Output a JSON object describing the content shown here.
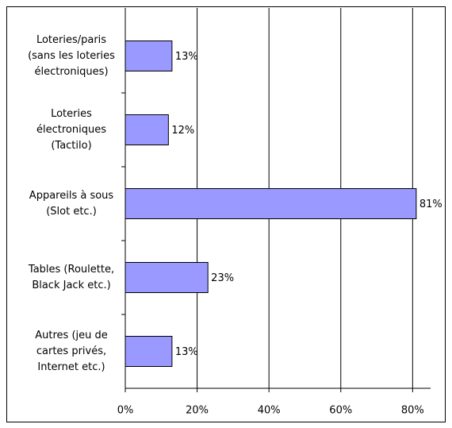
{
  "chart_data": {
    "type": "bar",
    "orientation": "horizontal",
    "categories": [
      [
        "Loteries/paris",
        "(sans les loteries",
        "électroniques)"
      ],
      [
        "Loteries",
        "électroniques",
        "(Tactilo)"
      ],
      [
        "Appareils à sous",
        "(Slot etc.)"
      ],
      [
        "Tables (Roulette,",
        "Black Jack etc.)"
      ],
      [
        "Autres (jeu de",
        "cartes privés,",
        "Internet etc.)"
      ]
    ],
    "values": [
      13,
      12,
      81,
      23,
      13
    ],
    "value_labels": [
      "13%",
      "12%",
      "81%",
      "23%",
      "13%"
    ],
    "color": "#9999ff",
    "xlim": [
      0,
      85
    ],
    "xticks": [
      {
        "value": 0,
        "label": "0%"
      },
      {
        "value": 20,
        "label": "20%"
      },
      {
        "value": 40,
        "label": "40%"
      },
      {
        "value": 60,
        "label": "60%"
      },
      {
        "value": 80,
        "label": "80%"
      }
    ],
    "grid": true
  }
}
